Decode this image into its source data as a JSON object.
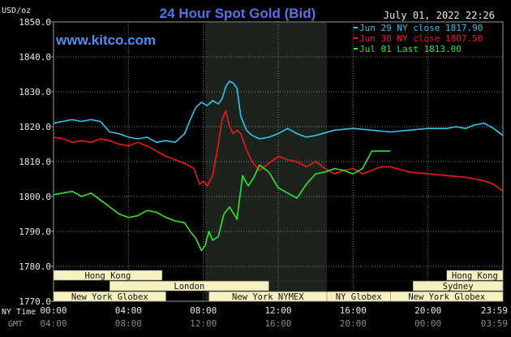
{
  "header": {
    "unit_label": "USD/oz",
    "title": "24 Hour Spot Gold (Bid)",
    "datetime": "July 01, 2022 22:26",
    "site": "www.kitco.com"
  },
  "legend": [
    {
      "label": "Jun 29 NY close 1817.90",
      "color": "#2ec6ec"
    },
    {
      "label": "Jun 30 NY close 1807.50",
      "color": "#ee1a1a"
    },
    {
      "label": "Jul 01 Last 1813.00",
      "color": "#2ee62e"
    }
  ],
  "axes": {
    "ny_time_label": "NY Time",
    "gmt_label": "GMT",
    "x_ticks": [
      "00:00",
      "04:00",
      "08:00",
      "12:00",
      "16:00",
      "20:00",
      "23:59"
    ],
    "x_tick_hours": [
      0,
      4,
      8,
      12,
      16,
      20,
      23.98
    ],
    "gmt_ticks": [
      "04:00",
      "08:00",
      "12:00",
      "16:00",
      "20:00",
      "00:00",
      "03:59"
    ],
    "y_ticks": [
      "1850.0",
      "1840.0",
      "1830.0",
      "1820.0",
      "1810.0",
      "1800.0",
      "1790.0",
      "1780.0",
      "1770.0"
    ],
    "y_tick_values": [
      1850,
      1840,
      1830,
      1820,
      1810,
      1800,
      1790,
      1780,
      1770
    ]
  },
  "sessions": [
    {
      "label": "Hong Kong",
      "row": 0,
      "start": 0,
      "end": 5.8
    },
    {
      "label": "London",
      "row": 1,
      "start": 3.0,
      "end": 11.5
    },
    {
      "label": "New York Globex",
      "row": 2,
      "start": 0,
      "end": 6.0
    },
    {
      "label": "New York NYMEX",
      "row": 2,
      "start": 8.3,
      "end": 14.6
    },
    {
      "label": "NY Globex",
      "row": 2,
      "start": 14.6,
      "end": 18.0
    },
    {
      "label": "Hong Kong",
      "row": 0,
      "start": 21.0,
      "end": 24.0
    },
    {
      "label": "Sydney",
      "row": 1,
      "start": 19.2,
      "end": 24.0
    },
    {
      "label": "New York Globex",
      "row": 2,
      "start": 18.0,
      "end": 24.0
    }
  ],
  "chart_data": {
    "type": "line",
    "title": "24 Hour Spot Gold (Bid)",
    "ylabel": "USD/oz",
    "xlabel": "NY Time",
    "xlim_hours": [
      0,
      24
    ],
    "ylim": [
      1770,
      1850
    ],
    "grid": true,
    "highlight_hours": [
      8.1,
      14.6
    ],
    "legend_position": "top-right",
    "series": [
      {
        "name": "Jun 29 NY close 1817.90",
        "color": "#2ec6ec",
        "x": [
          0,
          0.5,
          1,
          1.5,
          2,
          2.5,
          3,
          3.5,
          4,
          4.5,
          5,
          5.5,
          6,
          6.5,
          7,
          7.3,
          7.6,
          7.9,
          8.2,
          8.5,
          8.8,
          9.0,
          9.2,
          9.4,
          9.6,
          9.8,
          10.0,
          10.3,
          10.6,
          11.0,
          11.5,
          12.0,
          12.5,
          13.0,
          13.5,
          14.0,
          15.0,
          16.0,
          17.0,
          18.0,
          19.0,
          20.0,
          21.0,
          21.5,
          22.0,
          22.5,
          23.0,
          23.5,
          24.0
        ],
        "values": [
          1821.0,
          1821.5,
          1822.0,
          1821.5,
          1822.0,
          1821.5,
          1818.5,
          1818.0,
          1817.0,
          1816.5,
          1817.0,
          1815.5,
          1816.0,
          1815.5,
          1818.0,
          1822.0,
          1825.5,
          1827.0,
          1826.0,
          1827.5,
          1826.5,
          1828.0,
          1831.5,
          1833.0,
          1832.5,
          1831.0,
          1823.0,
          1819.0,
          1817.5,
          1816.5,
          1817.0,
          1818.0,
          1819.5,
          1818.0,
          1817.0,
          1817.5,
          1819.0,
          1819.5,
          1819.0,
          1818.5,
          1819.0,
          1819.5,
          1819.5,
          1820.0,
          1819.5,
          1820.5,
          1821.0,
          1819.5,
          1817.5
        ]
      },
      {
        "name": "Jun 30 NY close 1807.50",
        "color": "#ee1a1a",
        "x": [
          0,
          0.5,
          1,
          1.5,
          2,
          2.5,
          3,
          3.5,
          4,
          4.5,
          5,
          5.5,
          6,
          6.5,
          7,
          7.5,
          7.8,
          8.0,
          8.2,
          8.5,
          8.8,
          9.0,
          9.2,
          9.4,
          9.6,
          9.8,
          10.0,
          10.3,
          10.6,
          11.0,
          11.5,
          12.0,
          12.5,
          13.0,
          13.5,
          14.0,
          14.5,
          15.0,
          15.5,
          16.0,
          16.5,
          17.0,
          17.5,
          18.0,
          19.0,
          20.0,
          21.0,
          22.0,
          23.0,
          23.5,
          24.0
        ],
        "values": [
          1817.0,
          1816.5,
          1815.5,
          1816.0,
          1815.5,
          1816.5,
          1816.0,
          1815.0,
          1814.5,
          1815.5,
          1814.5,
          1813.0,
          1811.5,
          1810.5,
          1809.5,
          1808.0,
          1803.5,
          1804.5,
          1803.0,
          1806.0,
          1815.0,
          1822.0,
          1824.5,
          1820.0,
          1818.0,
          1819.0,
          1818.0,
          1813.5,
          1810.0,
          1807.5,
          1809.5,
          1811.5,
          1810.5,
          1810.0,
          1808.5,
          1810.0,
          1808.0,
          1806.5,
          1807.5,
          1808.0,
          1806.5,
          1807.5,
          1808.5,
          1808.5,
          1807.0,
          1806.5,
          1806.0,
          1805.5,
          1804.5,
          1803.5,
          1801.5
        ]
      },
      {
        "name": "Jul 01 Last 1813.00",
        "color": "#2ee62e",
        "x": [
          0,
          0.5,
          1,
          1.5,
          2,
          2.5,
          3,
          3.5,
          4,
          4.5,
          5,
          5.5,
          6,
          6.5,
          7,
          7.3,
          7.6,
          7.9,
          8.1,
          8.3,
          8.5,
          8.8,
          9.1,
          9.4,
          9.8,
          10.1,
          10.4,
          10.7,
          11.0,
          11.5,
          12.0,
          12.5,
          13.0,
          13.5,
          14.0,
          14.5,
          15.0,
          15.5,
          16.0,
          16.5,
          17.0,
          17.5,
          18.0
        ],
        "values": [
          1800.5,
          1801.0,
          1801.5,
          1800.0,
          1801.0,
          1799.0,
          1797.0,
          1795.0,
          1794.0,
          1794.5,
          1796.0,
          1795.5,
          1794.0,
          1793.0,
          1792.5,
          1790.0,
          1788.0,
          1784.5,
          1786.0,
          1790.0,
          1787.5,
          1788.5,
          1795.0,
          1797.0,
          1793.5,
          1806.0,
          1803.0,
          1805.5,
          1809.0,
          1807.0,
          1802.5,
          1801.0,
          1799.5,
          1803.5,
          1806.5,
          1807.0,
          1808.0,
          1807.5,
          1806.5,
          1808.0,
          1813.0,
          1813.0,
          1813.0
        ]
      }
    ]
  }
}
